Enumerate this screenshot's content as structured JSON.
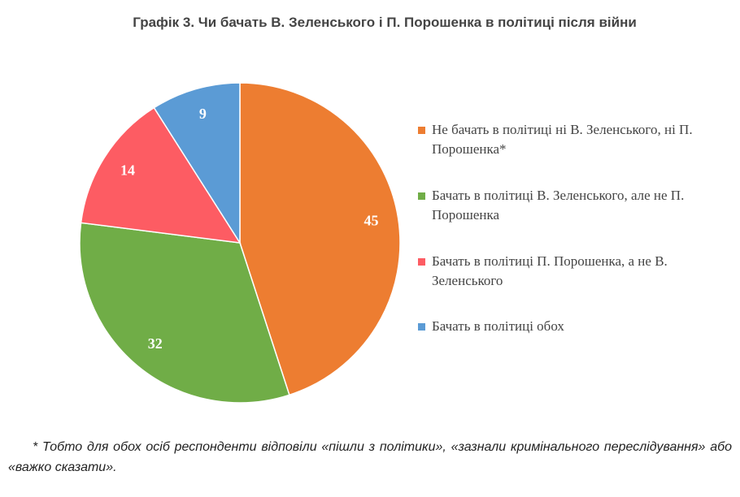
{
  "chart_data": {
    "type": "pie",
    "title": "Графік 3. Чи бачать В. Зеленського і П. Порошенка в політиці після війни",
    "categories": [
      "Не бачать в політиці ні В. Зеленського, ні П. Порошенка*",
      "Бачать в політиці В. Зеленського, але не П. Порошенка",
      "Бачать в політиці П. Порошенка, а не В. Зеленського",
      "Бачать в політиці обох"
    ],
    "values": [
      45,
      32,
      14,
      9
    ],
    "colors": [
      "#ed7d31",
      "#70ad47",
      "#fd5c63",
      "#5b9bd5"
    ],
    "legend": "right",
    "footnote": "* Тобто для обох осіб респонденти відповіли «пішли з політики», «зазнали кримінального переслідування» або «важко сказати»."
  }
}
